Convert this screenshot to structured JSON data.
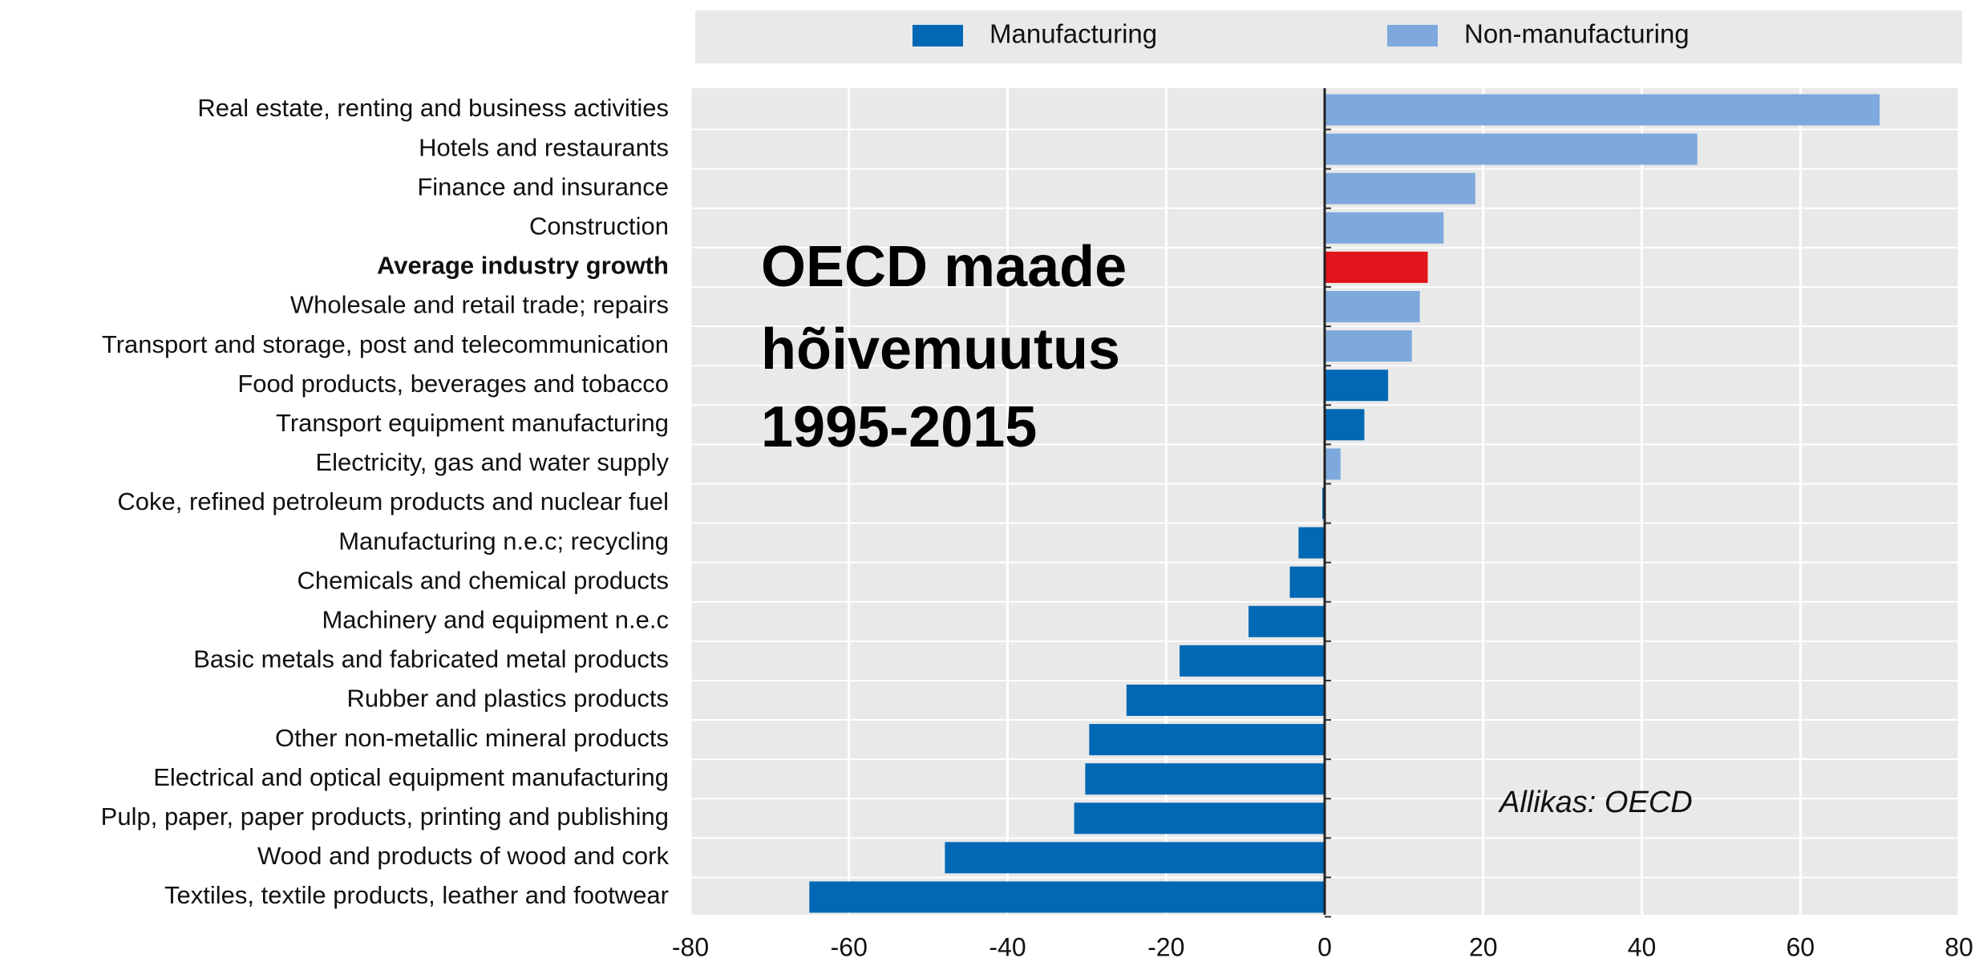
{
  "chart_data": {
    "type": "barh",
    "categories": [
      "Real estate, renting and business activities",
      "Hotels and restaurants",
      "Finance and insurance",
      "Construction",
      "Average industry growth",
      "Wholesale and retail trade; repairs",
      "Transport and storage, post and telecommunication",
      "Food products, beverages and tobacco",
      "Transport equipment manufacturing",
      "Electricity, gas and water supply",
      "Coke, refined petroleum products and nuclear fuel",
      "Manufacturing n.e.c; recycling",
      "Chemicals and chemical products",
      "Machinery and equipment n.e.c",
      "Basic metals and fabricated metal products",
      "Rubber and plastics products",
      "Other non-metallic mineral products",
      "Electrical and optical equipment manufacturing",
      "Pulp, paper, paper products, printing and publishing",
      "Wood and products of wood and cork",
      "Textiles, textile products, leather and footwear"
    ],
    "values": [
      70,
      47,
      19,
      15,
      13,
      12,
      11,
      8,
      5,
      2,
      -0.3,
      -3.3,
      -4.4,
      -9.6,
      -18.3,
      -25,
      -29.7,
      -30.2,
      -31.6,
      -47.9,
      -65
    ],
    "colors": [
      "#7ea9dc",
      "#7ea9dc",
      "#7ea9dc",
      "#7ea9dc",
      "#e3141b",
      "#7ea9dc",
      "#7ea9dc",
      "#0068b5",
      "#0068b5",
      "#7ea9dc",
      "#0068b5",
      "#0068b5",
      "#0068b5",
      "#0068b5",
      "#0068b5",
      "#0068b5",
      "#0068b5",
      "#0068b5",
      "#0068b5",
      "#0068b5",
      "#0068b5"
    ],
    "highlight_index": 4,
    "legend": [
      {
        "name": "Manufacturing",
        "color": "#0068b5"
      },
      {
        "name": "Non-manufacturing",
        "color": "#7ea9dc"
      }
    ],
    "xlim": [
      -80,
      80
    ],
    "xticks": [
      -80,
      -60,
      -40,
      -20,
      0,
      20,
      40,
      60,
      80
    ],
    "grid": true,
    "annotations": [
      "OECD maade",
      "hõivemuutus",
      "1995-2015",
      "Allikas: OECD"
    ]
  }
}
